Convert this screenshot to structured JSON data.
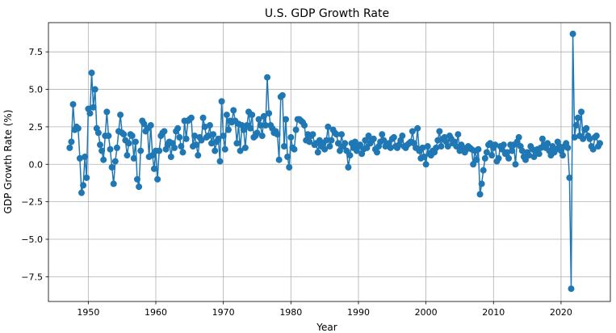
{
  "chart_data": {
    "type": "line",
    "title": "U.S. GDP Growth Rate",
    "xlabel": "Year",
    "ylabel": "GDP Growth Rate (%)",
    "xlim": [
      1944.1,
      2027.3
    ],
    "ylim": [
      -9.15,
      9.45
    ],
    "xticks": [
      1950,
      1960,
      1970,
      1980,
      1990,
      2000,
      2010,
      2020
    ],
    "yticks": [
      -7.5,
      -5.0,
      -2.5,
      0.0,
      2.5,
      5.0,
      7.5
    ],
    "xtick_labels": [
      "1950",
      "1960",
      "1970",
      "1980",
      "1990",
      "2000",
      "2010",
      "2020"
    ],
    "ytick_labels": [
      "−7.5",
      "−5.0",
      "−2.5",
      "0.0",
      "2.5",
      "5.0",
      "7.5"
    ],
    "grid": true,
    "colors": {
      "line": "#1f77b4",
      "marker": "#1f77b4",
      "grid": "#b0b0b0",
      "axes": "#000000"
    },
    "series": [
      {
        "name": "GDP Growth Rate",
        "x_start": 1947.25,
        "x_step": 0.25,
        "values": [
          1.1,
          1.5,
          4.0,
          2.3,
          2.5,
          2.4,
          0.4,
          -1.9,
          -1.4,
          0.5,
          -0.9,
          3.7,
          3.4,
          6.1,
          3.8,
          5.0,
          2.4,
          2.1,
          1.3,
          0.9,
          0.3,
          1.9,
          3.5,
          1.9,
          1.0,
          -0.2,
          -1.3,
          0.2,
          1.1,
          2.2,
          3.3,
          2.1,
          2.0,
          1.6,
          0.6,
          1.4,
          2.0,
          1.9,
          0.4,
          1.5,
          -1.0,
          -1.5,
          0.9,
          2.9,
          2.7,
          2.2,
          2.4,
          0.5,
          2.6,
          0.6,
          -0.3,
          0.9,
          -1.0,
          0.9,
          1.9,
          2.1,
          2.2,
          1.0,
          1.3,
          1.5,
          0.5,
          1.4,
          1.1,
          2.2,
          2.4,
          1.8,
          1.2,
          0.8,
          2.9,
          1.7,
          2.9,
          3.0,
          3.1,
          1.2,
          1.9,
          1.3,
          0.6,
          1.8,
          1.6,
          3.1,
          2.5,
          1.8,
          1.9,
          2.6,
          1.4,
          2.0,
          0.9,
          1.5,
          1.7,
          0.2,
          4.2,
          1.9,
          1.0,
          3.3,
          2.3,
          2.9,
          2.8,
          3.6,
          2.9,
          1.4,
          2.7,
          0.9,
          2.6,
          2.3,
          1.1,
          2.6,
          3.5,
          2.4,
          3.3,
          1.8,
          1.9,
          2.1,
          3.0,
          2.6,
          1.9,
          3.2,
          2.6,
          5.8,
          3.4,
          2.6,
          2.4,
          2.1,
          2.2,
          2.0,
          0.3,
          4.5,
          4.6,
          1.2,
          3.0,
          0.5,
          -0.2,
          1.8,
          1.1,
          1.0,
          2.3,
          3.0,
          3.0,
          2.9,
          2.8,
          2.6,
          1.6,
          2.0,
          1.5,
          1.9,
          2.0,
          1.3,
          1.4,
          0.8,
          1.6,
          1.2,
          1.4,
          1.0,
          1.6,
          2.5,
          1.2,
          1.6,
          2.3,
          2.1,
          2.0,
          1.4,
          0.9,
          2.0,
          1.2,
          1.4,
          0.9,
          -0.2,
          0.6,
          1.4,
          1.1,
          1.5,
          0.9,
          1.2,
          1.3,
          0.7,
          1.0,
          1.6,
          1.1,
          1.9,
          1.4,
          1.6,
          1.7,
          1.0,
          0.8,
          1.2,
          1.5,
          2.0,
          1.6,
          1.2,
          1.3,
          1.4,
          1.1,
          1.7,
          1.8,
          1.2,
          1.1,
          1.3,
          1.6,
          1.9,
          1.2,
          1.1,
          1.3,
          1.4,
          1.5,
          2.2,
          1.4,
          1.1,
          2.4,
          0.9,
          0.4,
          1.1,
          0.5,
          0.0,
          1.2,
          0.7,
          0.6,
          0.9,
          0.8,
          1.1,
          1.6,
          2.2,
          1.2,
          1.7,
          1.8,
          1.5,
          1.2,
          1.9,
          1.7,
          1.4,
          1.5,
          1.2,
          2.0,
          0.9,
          1.3,
          1.1,
          0.8,
          1.0,
          1.2,
          1.1,
          1.0,
          0.0,
          0.9,
          0.3,
          1.0,
          -2.0,
          -1.3,
          -0.4,
          0.4,
          0.8,
          1.3,
          1.4,
          0.6,
          1.1,
          1.3,
          0.2,
          0.4,
          1.2,
          1.0,
          1.3,
          0.7,
          0.8,
          0.4,
          1.3,
          0.9,
          1.3,
          0.0,
          1.5,
          1.8,
          1.2,
          0.9,
          0.5,
          0.3,
          0.8,
          0.6,
          1.2,
          1.0,
          0.5,
          0.9,
          1.0,
          0.7,
          1.1,
          1.7,
          1.3,
          1.1,
          1.4,
          0.9,
          0.6,
          1.2,
          0.8,
          1.0,
          1.5,
          1.2,
          0.9,
          0.6,
          1.2,
          1.4,
          1.1,
          -0.9,
          -8.3,
          8.7,
          1.8,
          2.6,
          3.1,
          1.9,
          3.5,
          1.7,
          2.3,
          2.4,
          1.9,
          1.7,
          1.2,
          1.0,
          1.8,
          1.9,
          1.2,
          1.4
        ]
      }
    ]
  }
}
